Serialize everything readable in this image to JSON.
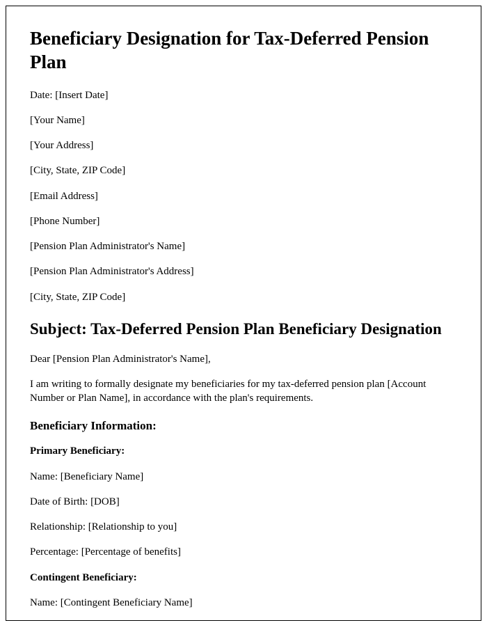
{
  "title": "Beneficiary Designation for Tax-Deferred Pension Plan",
  "header_fields": [
    "Date: [Insert Date]",
    "[Your Name]",
    "[Your Address]",
    "[City, State, ZIP Code]",
    "[Email Address]",
    "[Phone Number]",
    "[Pension Plan Administrator's Name]",
    "[Pension Plan Administrator's Address]",
    "[City, State, ZIP Code]"
  ],
  "subject": "Subject: Tax-Deferred Pension Plan Beneficiary Designation",
  "salutation": "Dear [Pension Plan Administrator's Name],",
  "intro": "I am writing to formally designate my beneficiaries for my tax-deferred pension plan [Account Number or Plan Name], in accordance with the plan's requirements.",
  "section_beneficiary_info": "Beneficiary Information:",
  "primary_label": "Primary Beneficiary:",
  "primary_fields": [
    "Name: [Beneficiary Name]",
    "Date of Birth: [DOB]",
    "Relationship: [Relationship to you]",
    "Percentage: [Percentage of benefits]"
  ],
  "contingent_label": "Contingent Beneficiary:",
  "contingent_fields": [
    "Name: [Contingent Beneficiary Name]"
  ]
}
